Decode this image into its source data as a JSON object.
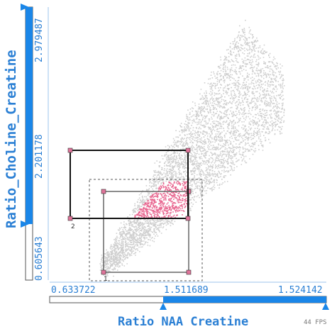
{
  "axes": {
    "x_title": "Ratio NAA Creatine",
    "y_title": "Ratio_Choline_Creatine",
    "x_ticks": [
      "0.633722",
      "1.511689",
      "1.524142"
    ],
    "y_ticks": [
      "0.605643",
      "2.201178",
      "2.979487"
    ]
  },
  "fps_text": "44 FPS",
  "selection_boxes": [
    {
      "label": "1"
    },
    {
      "label": "2"
    }
  ],
  "colors": {
    "accent": "#1a86e8",
    "axis_text": "#2a7fd4",
    "points": "#cfcfcf",
    "highlight": "#e8648e",
    "handle": "#e0749a"
  }
}
